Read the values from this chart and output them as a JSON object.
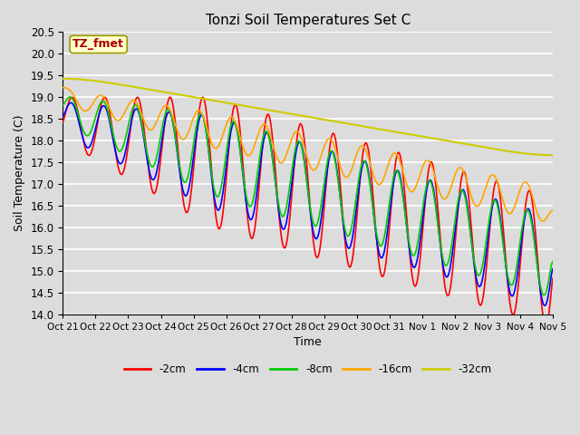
{
  "title": "Tonzi Soil Temperatures Set C",
  "xlabel": "Time",
  "ylabel": "Soil Temperature (C)",
  "ylim": [
    14.0,
    20.5
  ],
  "annotation": "TZ_fmet",
  "line_colors": {
    "-2cm": "#FF0000",
    "-4cm": "#0000FF",
    "-8cm": "#00CC00",
    "-16cm": "#FFA500",
    "-32cm": "#CCCC00"
  },
  "tick_labels": [
    "Oct 21",
    "Oct 22",
    "Oct 23",
    "Oct 24",
    "Oct 25",
    "Oct 26",
    "Oct 27",
    "Oct 28",
    "Oct 29",
    "Oct 30",
    "Oct 31",
    "Nov 1",
    "Nov 2",
    "Nov 3",
    "Nov 4",
    "Nov 5"
  ],
  "plot_bg_color": "#DCDCDC",
  "fig_bg_color": "#DCDCDC",
  "grid_color": "#FFFFFF",
  "yticks": [
    14.0,
    14.5,
    15.0,
    15.5,
    16.0,
    16.5,
    17.0,
    17.5,
    18.0,
    18.5,
    19.0,
    19.5,
    20.0,
    20.5
  ],
  "n_days": 15.0
}
